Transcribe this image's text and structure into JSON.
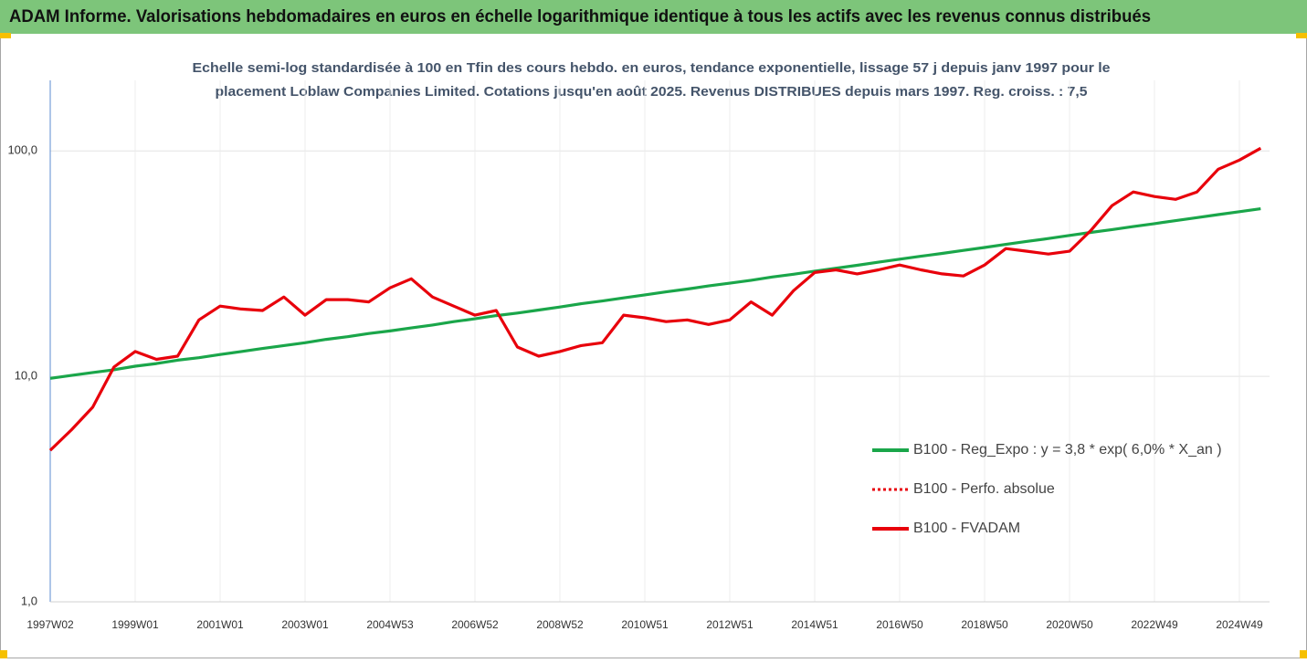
{
  "chart_data": {
    "type": "line",
    "title": "ADAM Informe. Valorisations hebdomadaires en euros en échelle logarithmique identique à tous les actifs avec les revenus connus distribués",
    "subtitle": [
      "Echelle semi-log standardisée à 100 en Tfin des cours hebdo. en euros, tendance exponentielle, lissage 57 j depuis janv 1997 pour le",
      "placement Loblaw Companies Limited. Cotations jusqu'en août 2025. Revenus DISTRIBUES depuis mars 1997. Reg. croiss. : 7,5"
    ],
    "categories": [
      "1997W02",
      null,
      null,
      null,
      "1999W01",
      null,
      null,
      null,
      "2001W01",
      null,
      null,
      null,
      "2003W01",
      null,
      null,
      null,
      "2004W53",
      null,
      null,
      null,
      "2006W52",
      null,
      null,
      null,
      "2008W52",
      null,
      null,
      null,
      "2010W51",
      null,
      null,
      null,
      "2012W51",
      null,
      null,
      null,
      "2014W51",
      null,
      null,
      null,
      "2016W50",
      null,
      null,
      null,
      "2018W50",
      null,
      null,
      null,
      "2020W50",
      null,
      null,
      null,
      "2022W49",
      null,
      null,
      null,
      "2024W49",
      null
    ],
    "series": [
      {
        "name": "B100 - Reg_Expo : y = 3,8 * exp( 6,0% *  X_an )",
        "color": "#1aa64a",
        "dash": "solid",
        "values": [
          9.8,
          10.1,
          10.4,
          10.7,
          11.1,
          11.4,
          11.8,
          12.1,
          12.5,
          12.9,
          13.3,
          13.7,
          14.1,
          14.6,
          15.0,
          15.5,
          15.9,
          16.4,
          16.9,
          17.5,
          18.0,
          18.6,
          19.1,
          19.7,
          20.3,
          21.0,
          21.6,
          22.3,
          23.0,
          23.7,
          24.4,
          25.2,
          25.9,
          26.7,
          27.6,
          28.4,
          29.3,
          30.2,
          31.1,
          32.1,
          33.1,
          34.1,
          35.1,
          36.2,
          37.3,
          38.5,
          39.7,
          40.9,
          42.2,
          43.5,
          44.8,
          46.2,
          47.6,
          49.1,
          50.6,
          52.2,
          53.8,
          55.4
        ]
      },
      {
        "name": "B100 - Perfo. absolue",
        "color": "#e8000b",
        "dash": "dotted",
        "values": [
          4.7,
          5.8,
          7.3,
          11,
          12.9,
          11.9,
          12.3,
          17.8,
          20.5,
          19.9,
          19.6,
          22.5,
          18.7,
          21.9,
          21.9,
          21.4,
          24.7,
          27.1,
          22.5,
          20.5,
          18.7,
          19.6,
          13.5,
          12.3,
          12.9,
          13.7,
          14.1,
          18.7,
          18.2,
          17.5,
          17.8,
          17.0,
          17.8,
          21.4,
          18.7,
          24.0,
          28.9,
          29.7,
          28.5,
          29.7,
          31.2,
          29.7,
          28.5,
          27.9,
          31.2,
          36.9,
          35.9,
          34.9,
          35.9,
          44.4,
          57.2,
          65.8,
          62.8,
          61.0,
          65.8,
          83.0,
          91.1,
          102.8
        ]
      },
      {
        "name": "B100 - FVADAM",
        "color": "#e8000b",
        "dash": "solid",
        "values": [
          4.7,
          5.8,
          7.3,
          11,
          12.9,
          11.9,
          12.3,
          17.8,
          20.5,
          19.9,
          19.6,
          22.5,
          18.7,
          21.9,
          21.9,
          21.4,
          24.7,
          27.1,
          22.5,
          20.5,
          18.7,
          19.6,
          13.5,
          12.3,
          12.9,
          13.7,
          14.1,
          18.7,
          18.2,
          17.5,
          17.8,
          17.0,
          17.8,
          21.4,
          18.7,
          24.0,
          28.9,
          29.7,
          28.5,
          29.7,
          31.2,
          29.7,
          28.5,
          27.9,
          31.2,
          36.9,
          35.9,
          34.9,
          35.9,
          44.4,
          57.2,
          65.8,
          62.8,
          61.0,
          65.8,
          83.0,
          91.1,
          102.8
        ]
      }
    ],
    "log_scale": true,
    "ylim": [
      1,
      200
    ],
    "yticks": [
      {
        "value": 1,
        "label": "1,0"
      },
      {
        "value": 10,
        "label": "10,0"
      },
      {
        "value": 100,
        "label": "100,0"
      }
    ],
    "grid": true,
    "legend": "right"
  }
}
